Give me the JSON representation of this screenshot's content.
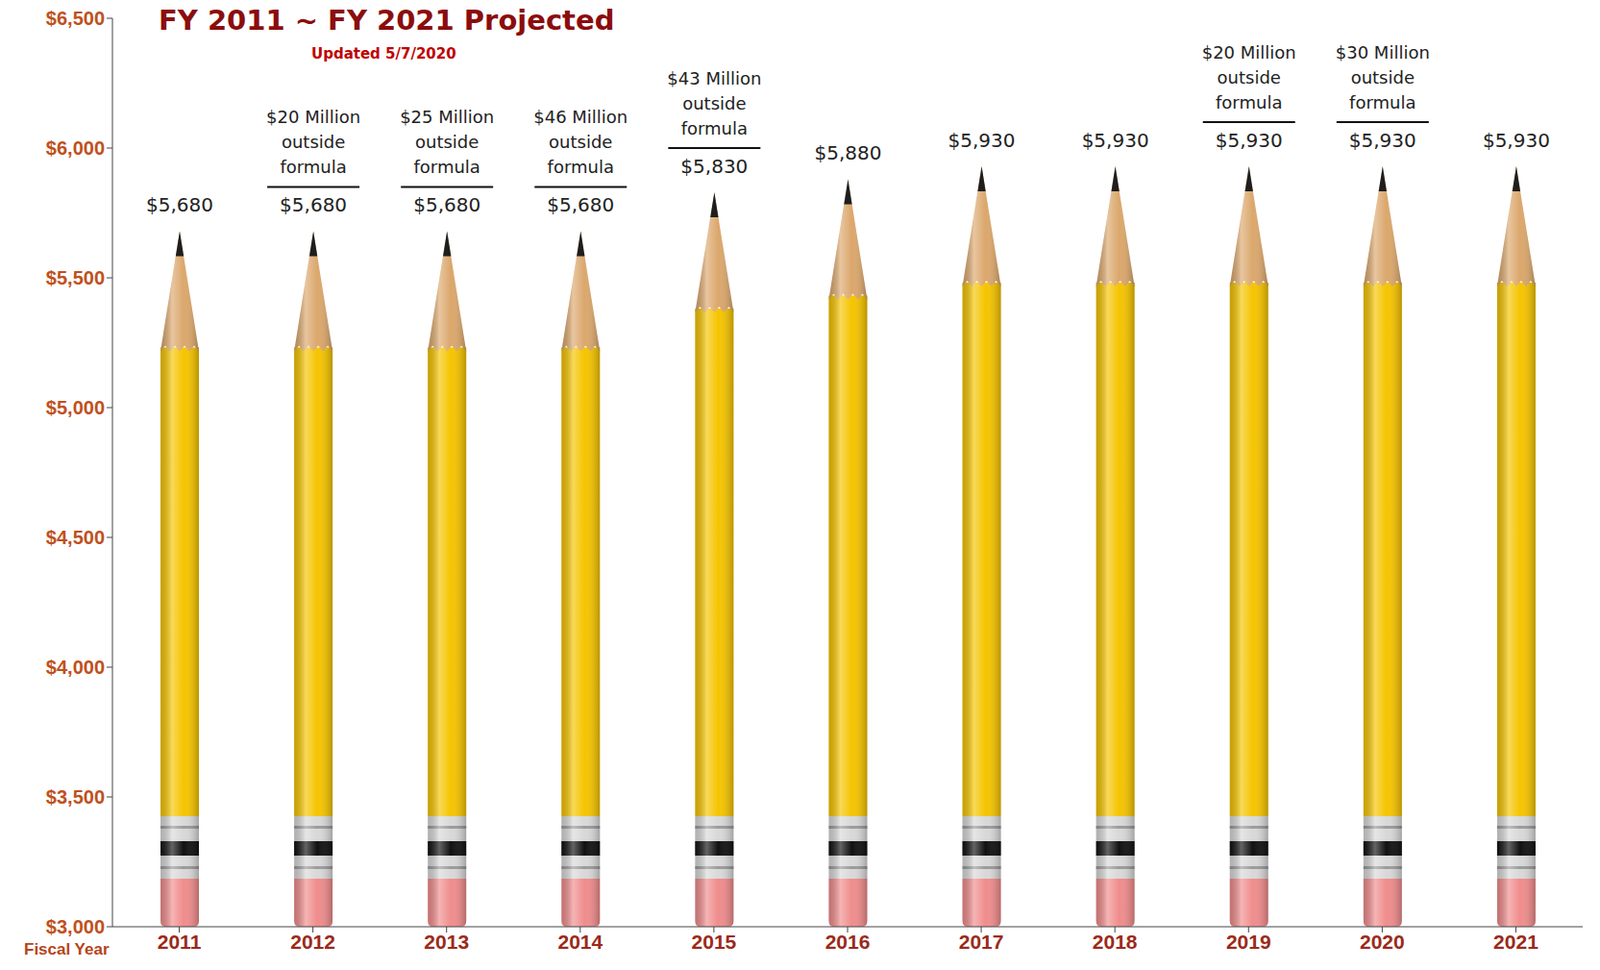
{
  "chart_data": {
    "type": "bar",
    "title": "FY 2011 ~ FY 2021 Projected",
    "subtitle": "Updated 5/7/2020",
    "xlabel": "Fiscal Year",
    "categories": [
      "2011",
      "2012",
      "2013",
      "2014",
      "2015",
      "2016",
      "2017",
      "2018",
      "2019",
      "2020",
      "2021"
    ],
    "values": [
      5680,
      5680,
      5680,
      5680,
      5830,
      5880,
      5930,
      5930,
      5930,
      5930,
      5930
    ],
    "value_labels": [
      "$5,680",
      "$5,680",
      "$5,680",
      "$5,680",
      "$5,830",
      "$5,880",
      "$5,930",
      "$5,930",
      "$5,930",
      "$5,930",
      "$5,930"
    ],
    "annotations": [
      null,
      "$20 Million outside formula",
      "$25 Million outside formula",
      "$46 Million outside formula",
      "$43 Million outside formula",
      null,
      null,
      null,
      "$20 Million outside formula",
      "$30 Million outside formula",
      null
    ],
    "color": "#f5c400",
    "ylim": [
      3000,
      6500
    ],
    "yticks": [
      {
        "value": 3000,
        "label": "$3,000"
      },
      {
        "value": 3500,
        "label": "$3,500"
      },
      {
        "value": 4000,
        "label": "$4,000"
      },
      {
        "value": 4500,
        "label": "$4,500"
      },
      {
        "value": 5000,
        "label": "$5,000"
      },
      {
        "value": 5500,
        "label": "$5,500"
      },
      {
        "value": 6000,
        "label": "$6,000"
      },
      {
        "value": 6500,
        "label": "$6,500"
      }
    ],
    "grid": false,
    "data_labels": true
  }
}
